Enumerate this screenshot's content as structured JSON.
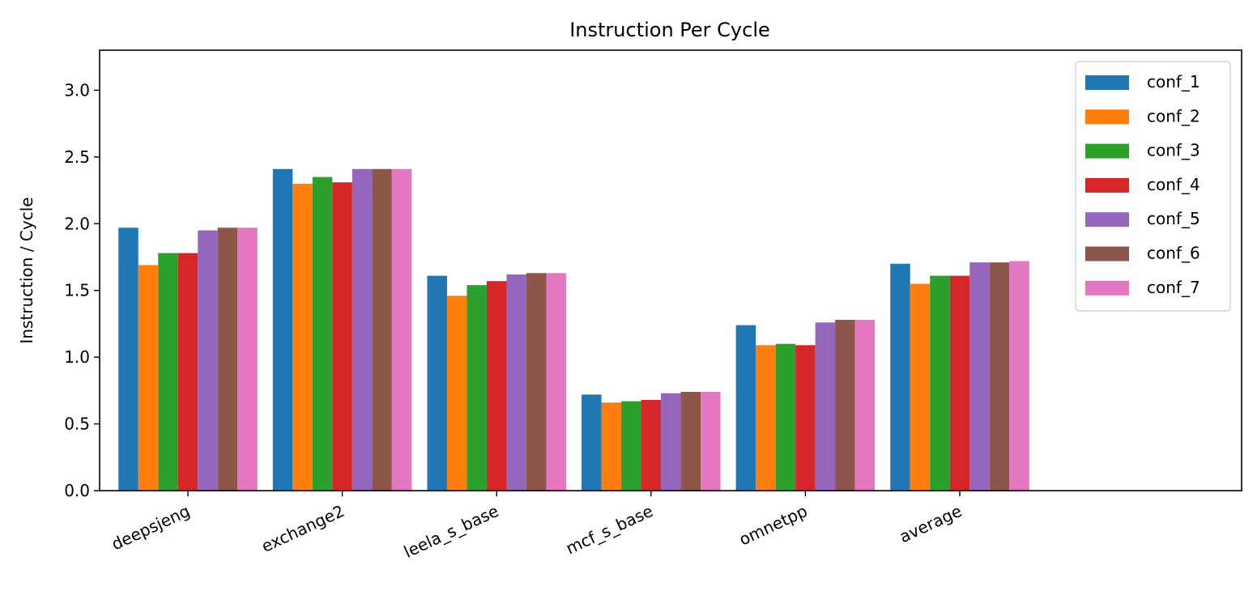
{
  "chart_data": {
    "type": "bar",
    "title": "Instruction Per Cycle",
    "xlabel": "",
    "ylabel": "Instruction / Cycle",
    "ylim": [
      0,
      3.3
    ],
    "yticks": [
      0.0,
      0.5,
      1.0,
      1.5,
      2.0,
      2.5,
      3.0
    ],
    "ytick_labels": [
      "0.0",
      "0.5",
      "1.0",
      "1.5",
      "2.0",
      "2.5",
      "3.0"
    ],
    "categories": [
      "deepsjeng",
      "exchange2",
      "leela_s_base",
      "mcf_s_base",
      "omnetpp",
      "average"
    ],
    "grid": false,
    "legend_position": "top-right",
    "series": [
      {
        "name": "conf_1",
        "color": "#1f77b4",
        "values": [
          1.97,
          2.41,
          1.61,
          0.72,
          1.24,
          1.7
        ]
      },
      {
        "name": "conf_2",
        "color": "#ff7f0e",
        "values": [
          1.69,
          2.3,
          1.46,
          0.66,
          1.09,
          1.55
        ]
      },
      {
        "name": "conf_3",
        "color": "#2ca02c",
        "values": [
          1.78,
          2.35,
          1.54,
          0.67,
          1.1,
          1.61
        ]
      },
      {
        "name": "conf_4",
        "color": "#d62728",
        "values": [
          1.78,
          2.31,
          1.57,
          0.68,
          1.09,
          1.61
        ]
      },
      {
        "name": "conf_5",
        "color": "#9467bd",
        "values": [
          1.95,
          2.41,
          1.62,
          0.73,
          1.26,
          1.71
        ]
      },
      {
        "name": "conf_6",
        "color": "#8c564b",
        "values": [
          1.97,
          2.41,
          1.63,
          0.74,
          1.28,
          1.71
        ]
      },
      {
        "name": "conf_7",
        "color": "#e377c2",
        "values": [
          1.97,
          2.41,
          1.63,
          0.74,
          1.28,
          1.72
        ]
      }
    ]
  }
}
